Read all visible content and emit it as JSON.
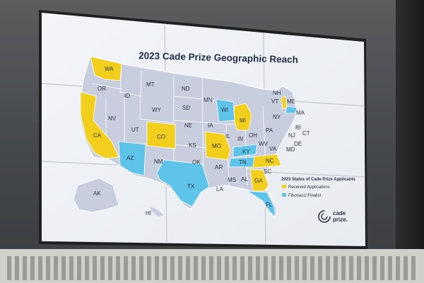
{
  "map": {
    "title": "2023 Cade Prize Geographic Reach",
    "legend": {
      "heading": "2023 States of Cade Prize Applicants",
      "items": [
        {
          "label": "Received Applications",
          "color": "#f2cf1d"
        },
        {
          "label": "Fibonacci Finalist",
          "color": "#5ec3e8"
        }
      ]
    },
    "colors": {
      "base": "#c9cede",
      "applications": "#f2cf1d",
      "finalist": "#5ec3e8"
    },
    "state_labels": [
      "WA",
      "OR",
      "ID",
      "MT",
      "ND",
      "MN",
      "WI",
      "MI",
      "NY",
      "VT",
      "NH",
      "ME",
      "MA",
      "RI",
      "CT",
      "NJ",
      "PA",
      "DE",
      "MD",
      "VA",
      "WV",
      "OH",
      "IN",
      "IL",
      "IA",
      "NE",
      "SD",
      "WY",
      "NV",
      "CA",
      "UT",
      "CO",
      "KS",
      "MO",
      "KY",
      "TN",
      "NC",
      "SC",
      "GA",
      "AL",
      "MS",
      "AR",
      "LA",
      "OK",
      "TX",
      "NM",
      "AZ",
      "FL",
      "AK",
      "HI"
    ]
  },
  "logo": {
    "line1": "cade",
    "line2": "prize."
  }
}
